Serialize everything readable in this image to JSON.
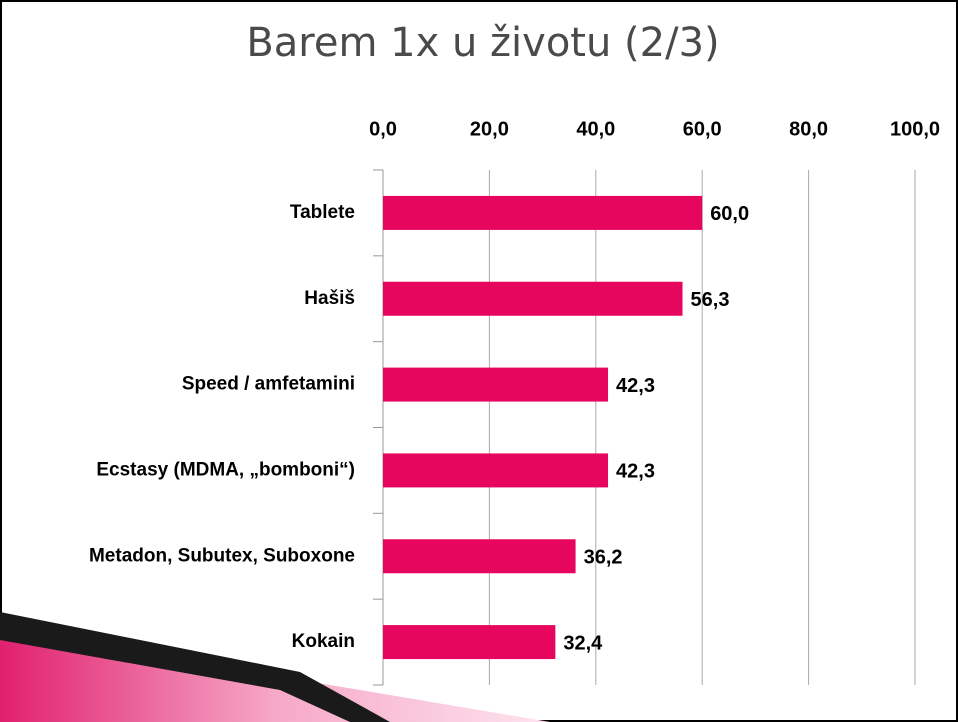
{
  "chart_data": {
    "type": "hbar",
    "title": "Barem 1x u životu (2/3)",
    "categories": [
      "Tablete",
      "Hašiš",
      "Speed / amfetamini",
      "Ecstasy (MDMA, „bomboni“)",
      "Metadon, Subutex, Suboxone",
      "Kokain"
    ],
    "values": [
      60.0,
      56.3,
      42.3,
      42.3,
      36.2,
      32.4
    ],
    "value_labels": [
      "60,0",
      "56,3",
      "42,3",
      "42,3",
      "36,2",
      "32,4"
    ],
    "color": "#e6065e",
    "xlim": [
      0,
      100
    ],
    "xticks": [
      {
        "value": 0,
        "label": "0,0"
      },
      {
        "value": 20,
        "label": "20,0"
      },
      {
        "value": 40,
        "label": "40,0"
      },
      {
        "value": 60,
        "label": "60,0"
      },
      {
        "value": 80,
        "label": "80,0"
      },
      {
        "value": 100,
        "label": "100,0"
      }
    ],
    "grid": true
  }
}
